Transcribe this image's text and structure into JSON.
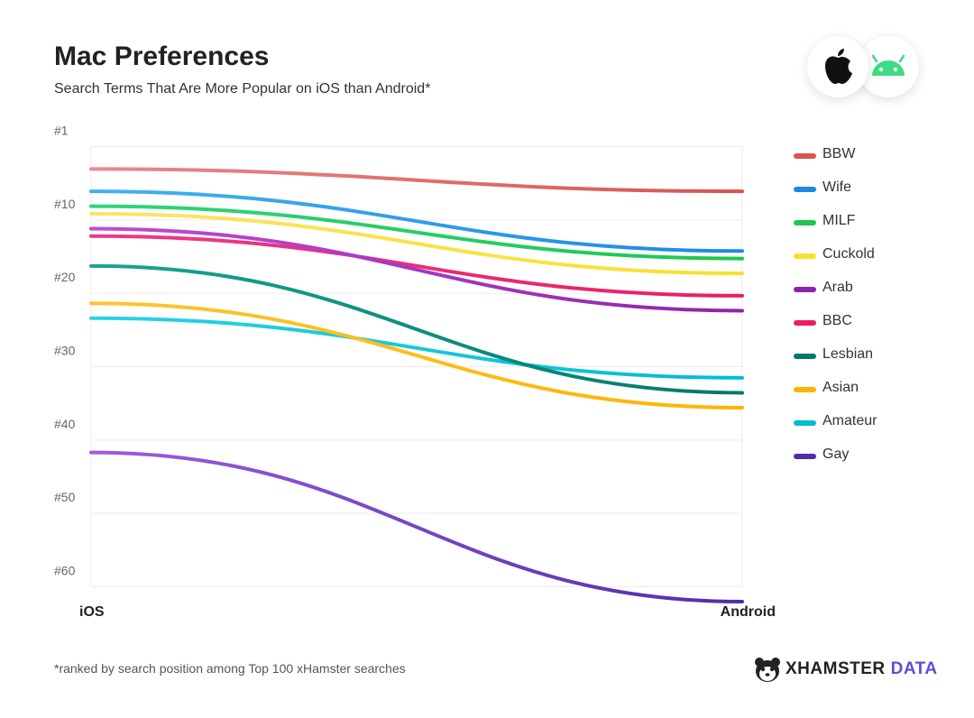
{
  "title": "Mac Preferences",
  "subtitle": "Search Terms That Are More Popular on iOS than Android*",
  "footnote": "*ranked by search position among Top 100 xHamster searches",
  "brand": {
    "main": "XHAMSTER",
    "accent": "DATA"
  },
  "icons": [
    "apple-icon",
    "android-icon",
    "hamster-logo-icon"
  ],
  "chart_data": {
    "type": "line",
    "x": [
      "iOS",
      "Android"
    ],
    "y_ticks": [
      "#1",
      "#10",
      "#20",
      "#30",
      "#40",
      "#50",
      "#60"
    ],
    "y_tick_values": [
      1,
      10,
      20,
      30,
      40,
      50,
      60
    ],
    "ylim": [
      1,
      62
    ],
    "y_reversed": true,
    "grid": true,
    "legend_position": "right",
    "series": [
      {
        "name": "BBW",
        "values": [
          5,
          8
        ],
        "color": [
          "#e88a8a",
          "#d9534f"
        ]
      },
      {
        "name": "Wife",
        "values": [
          8,
          16
        ],
        "color": [
          "#42b1f0",
          "#1e88e5"
        ]
      },
      {
        "name": "MILF",
        "values": [
          10,
          17
        ],
        "color": [
          "#2ed57a",
          "#1ec74f"
        ]
      },
      {
        "name": "Cuckold",
        "values": [
          11,
          19
        ],
        "color": [
          "#fbe468",
          "#f9e02b"
        ]
      },
      {
        "name": "Arab",
        "values": [
          13,
          24
        ],
        "color": [
          "#c04bd6",
          "#8e24aa"
        ]
      },
      {
        "name": "BBC",
        "values": [
          14,
          22
        ],
        "color": [
          "#ec3a8a",
          "#e91e63"
        ]
      },
      {
        "name": "Lesbian",
        "values": [
          18,
          35
        ],
        "color": [
          "#1aa394",
          "#00796b"
        ]
      },
      {
        "name": "Asian",
        "values": [
          23,
          37
        ],
        "color": [
          "#fbc531",
          "#ffb300"
        ]
      },
      {
        "name": "Amateur",
        "values": [
          25,
          33
        ],
        "color": [
          "#2ad3e3",
          "#00bcd4"
        ]
      },
      {
        "name": "Gay",
        "values": [
          43,
          63
        ],
        "color": [
          "#9c5de0",
          "#512da8"
        ]
      }
    ]
  }
}
